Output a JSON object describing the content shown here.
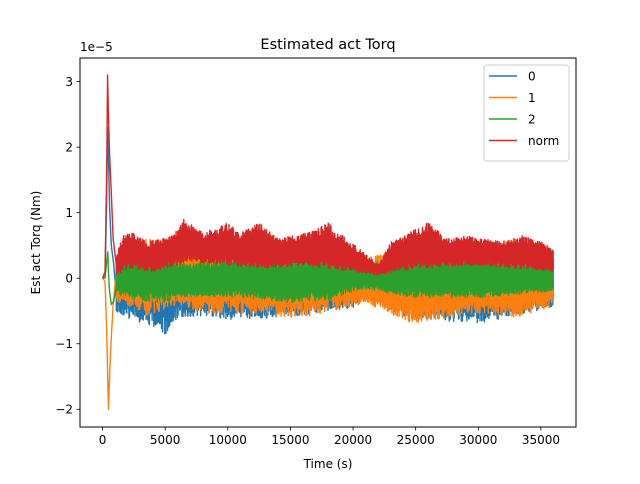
{
  "chart_data": {
    "type": "line",
    "title": "Estimated act Torq",
    "xlabel": "Time (s)",
    "ylabel": "Est act Torq (Nm)",
    "y_offset_label": "1e−5",
    "y_scale": 1e-05,
    "xlim": [
      -1800,
      37800
    ],
    "ylim": [
      -2.27,
      3.36
    ],
    "x_ticks": [
      0,
      5000,
      10000,
      15000,
      20000,
      25000,
      30000,
      35000
    ],
    "x_tick_labels": [
      "0",
      "5000",
      "10000",
      "15000",
      "20000",
      "25000",
      "30000",
      "35000"
    ],
    "y_ticks": [
      -2,
      -1,
      0,
      1,
      2,
      3
    ],
    "y_tick_labels": [
      "−2",
      "−1",
      "0",
      "1",
      "2",
      "3"
    ],
    "legend_position": "top-right",
    "grid": false,
    "x_end": 36000,
    "series": [
      {
        "name": "0",
        "color": "#1f77b4",
        "initial": [
          [
            0,
            0
          ],
          [
            200,
            0.05
          ],
          [
            330,
            1.2
          ],
          [
            400,
            2.3
          ],
          [
            470,
            1.9
          ],
          [
            560,
            1.1
          ],
          [
            700,
            0.5
          ],
          [
            900,
            0.2
          ],
          [
            1100,
            -0.3
          ]
        ],
        "center": [
          [
            1100,
            -0.1
          ],
          [
            4000,
            -0.2
          ],
          [
            8000,
            -0.1
          ],
          [
            12000,
            -0.15
          ],
          [
            20000,
            -0.1
          ],
          [
            28000,
            -0.15
          ],
          [
            36000,
            -0.1
          ]
        ],
        "amp": [
          [
            1100,
            0.45
          ],
          [
            4500,
            0.55
          ],
          [
            5000,
            0.7
          ],
          [
            6000,
            0.45
          ],
          [
            10000,
            0.5
          ],
          [
            15000,
            0.45
          ],
          [
            20000,
            0.35
          ],
          [
            21000,
            0.15
          ],
          [
            24000,
            0.45
          ],
          [
            30000,
            0.55
          ],
          [
            33000,
            0.45
          ],
          [
            36000,
            0.35
          ]
        ]
      },
      {
        "name": "1",
        "color": "#ff7f0e",
        "initial": [
          [
            0,
            0
          ],
          [
            200,
            -0.05
          ],
          [
            330,
            -0.8
          ],
          [
            470,
            -2.0
          ],
          [
            560,
            -1.5
          ],
          [
            700,
            -0.9
          ],
          [
            850,
            -0.4
          ],
          [
            1100,
            0.1
          ]
        ],
        "center": [
          [
            1100,
            0
          ],
          [
            6000,
            0.05
          ],
          [
            12000,
            -0.05
          ],
          [
            18000,
            0
          ],
          [
            25000,
            -0.1
          ],
          [
            30000,
            0
          ],
          [
            36000,
            0
          ]
        ],
        "amp": [
          [
            1100,
            0.35
          ],
          [
            3500,
            0.6
          ],
          [
            6000,
            0.45
          ],
          [
            8000,
            0.55
          ],
          [
            12000,
            0.5
          ],
          [
            16000,
            0.6
          ],
          [
            21000,
            0.35
          ],
          [
            25000,
            0.6
          ],
          [
            30000,
            0.55
          ],
          [
            33000,
            0.6
          ],
          [
            36000,
            0.45
          ]
        ]
      },
      {
        "name": "2",
        "color": "#2ca02c",
        "initial": [
          [
            0,
            0
          ],
          [
            200,
            0.0
          ],
          [
            330,
            0.25
          ],
          [
            420,
            0.4
          ],
          [
            470,
            0.1
          ],
          [
            560,
            -0.2
          ],
          [
            700,
            -0.4
          ],
          [
            900,
            -0.35
          ],
          [
            1100,
            -0.1
          ]
        ],
        "center": [
          [
            1100,
            0.05
          ],
          [
            5000,
            -0.05
          ],
          [
            10000,
            0.0
          ],
          [
            15000,
            -0.05
          ],
          [
            20000,
            0.05
          ],
          [
            24000,
            0.0
          ],
          [
            30000,
            0.0
          ],
          [
            36000,
            0.0
          ]
        ],
        "amp": [
          [
            1100,
            0.3
          ],
          [
            4000,
            0.35
          ],
          [
            7000,
            0.25
          ],
          [
            12000,
            0.3
          ],
          [
            18000,
            0.35
          ],
          [
            21000,
            0.2
          ],
          [
            25000,
            0.3
          ],
          [
            30000,
            0.3
          ],
          [
            36000,
            0.2
          ]
        ]
      },
      {
        "name": "norm",
        "color": "#d62728",
        "initial": [
          [
            0,
            0
          ],
          [
            200,
            0.1
          ],
          [
            330,
            1.6
          ],
          [
            400,
            3.1
          ],
          [
            470,
            2.5
          ],
          [
            560,
            1.9
          ],
          [
            700,
            1.3
          ],
          [
            850,
            0.6
          ],
          [
            1100,
            0.2
          ]
        ],
        "low": [
          [
            1100,
            0.05
          ],
          [
            2000,
            0.15
          ],
          [
            4000,
            0.1
          ],
          [
            7000,
            0.25
          ],
          [
            10000,
            0.2
          ],
          [
            13000,
            0.15
          ],
          [
            16000,
            0.2
          ],
          [
            20000,
            0.1
          ],
          [
            22000,
            0.05
          ],
          [
            25000,
            0.15
          ],
          [
            30000,
            0.2
          ],
          [
            33000,
            0.15
          ],
          [
            36000,
            0.1
          ]
        ],
        "high": [
          [
            1100,
            0.35
          ],
          [
            1600,
            0.65
          ],
          [
            2500,
            0.7
          ],
          [
            3500,
            0.55
          ],
          [
            5500,
            0.65
          ],
          [
            6500,
            0.9
          ],
          [
            8000,
            0.7
          ],
          [
            10000,
            0.85
          ],
          [
            11000,
            0.7
          ],
          [
            12500,
            0.85
          ],
          [
            14000,
            0.6
          ],
          [
            16500,
            0.7
          ],
          [
            18000,
            0.85
          ],
          [
            19500,
            0.6
          ],
          [
            20500,
            0.45
          ],
          [
            22000,
            0.2
          ],
          [
            23000,
            0.55
          ],
          [
            24500,
            0.7
          ],
          [
            26000,
            0.85
          ],
          [
            27500,
            0.6
          ],
          [
            29000,
            0.65
          ],
          [
            30500,
            0.6
          ],
          [
            32000,
            0.55
          ],
          [
            33500,
            0.65
          ],
          [
            35000,
            0.55
          ],
          [
            36000,
            0.45
          ]
        ]
      }
    ]
  }
}
